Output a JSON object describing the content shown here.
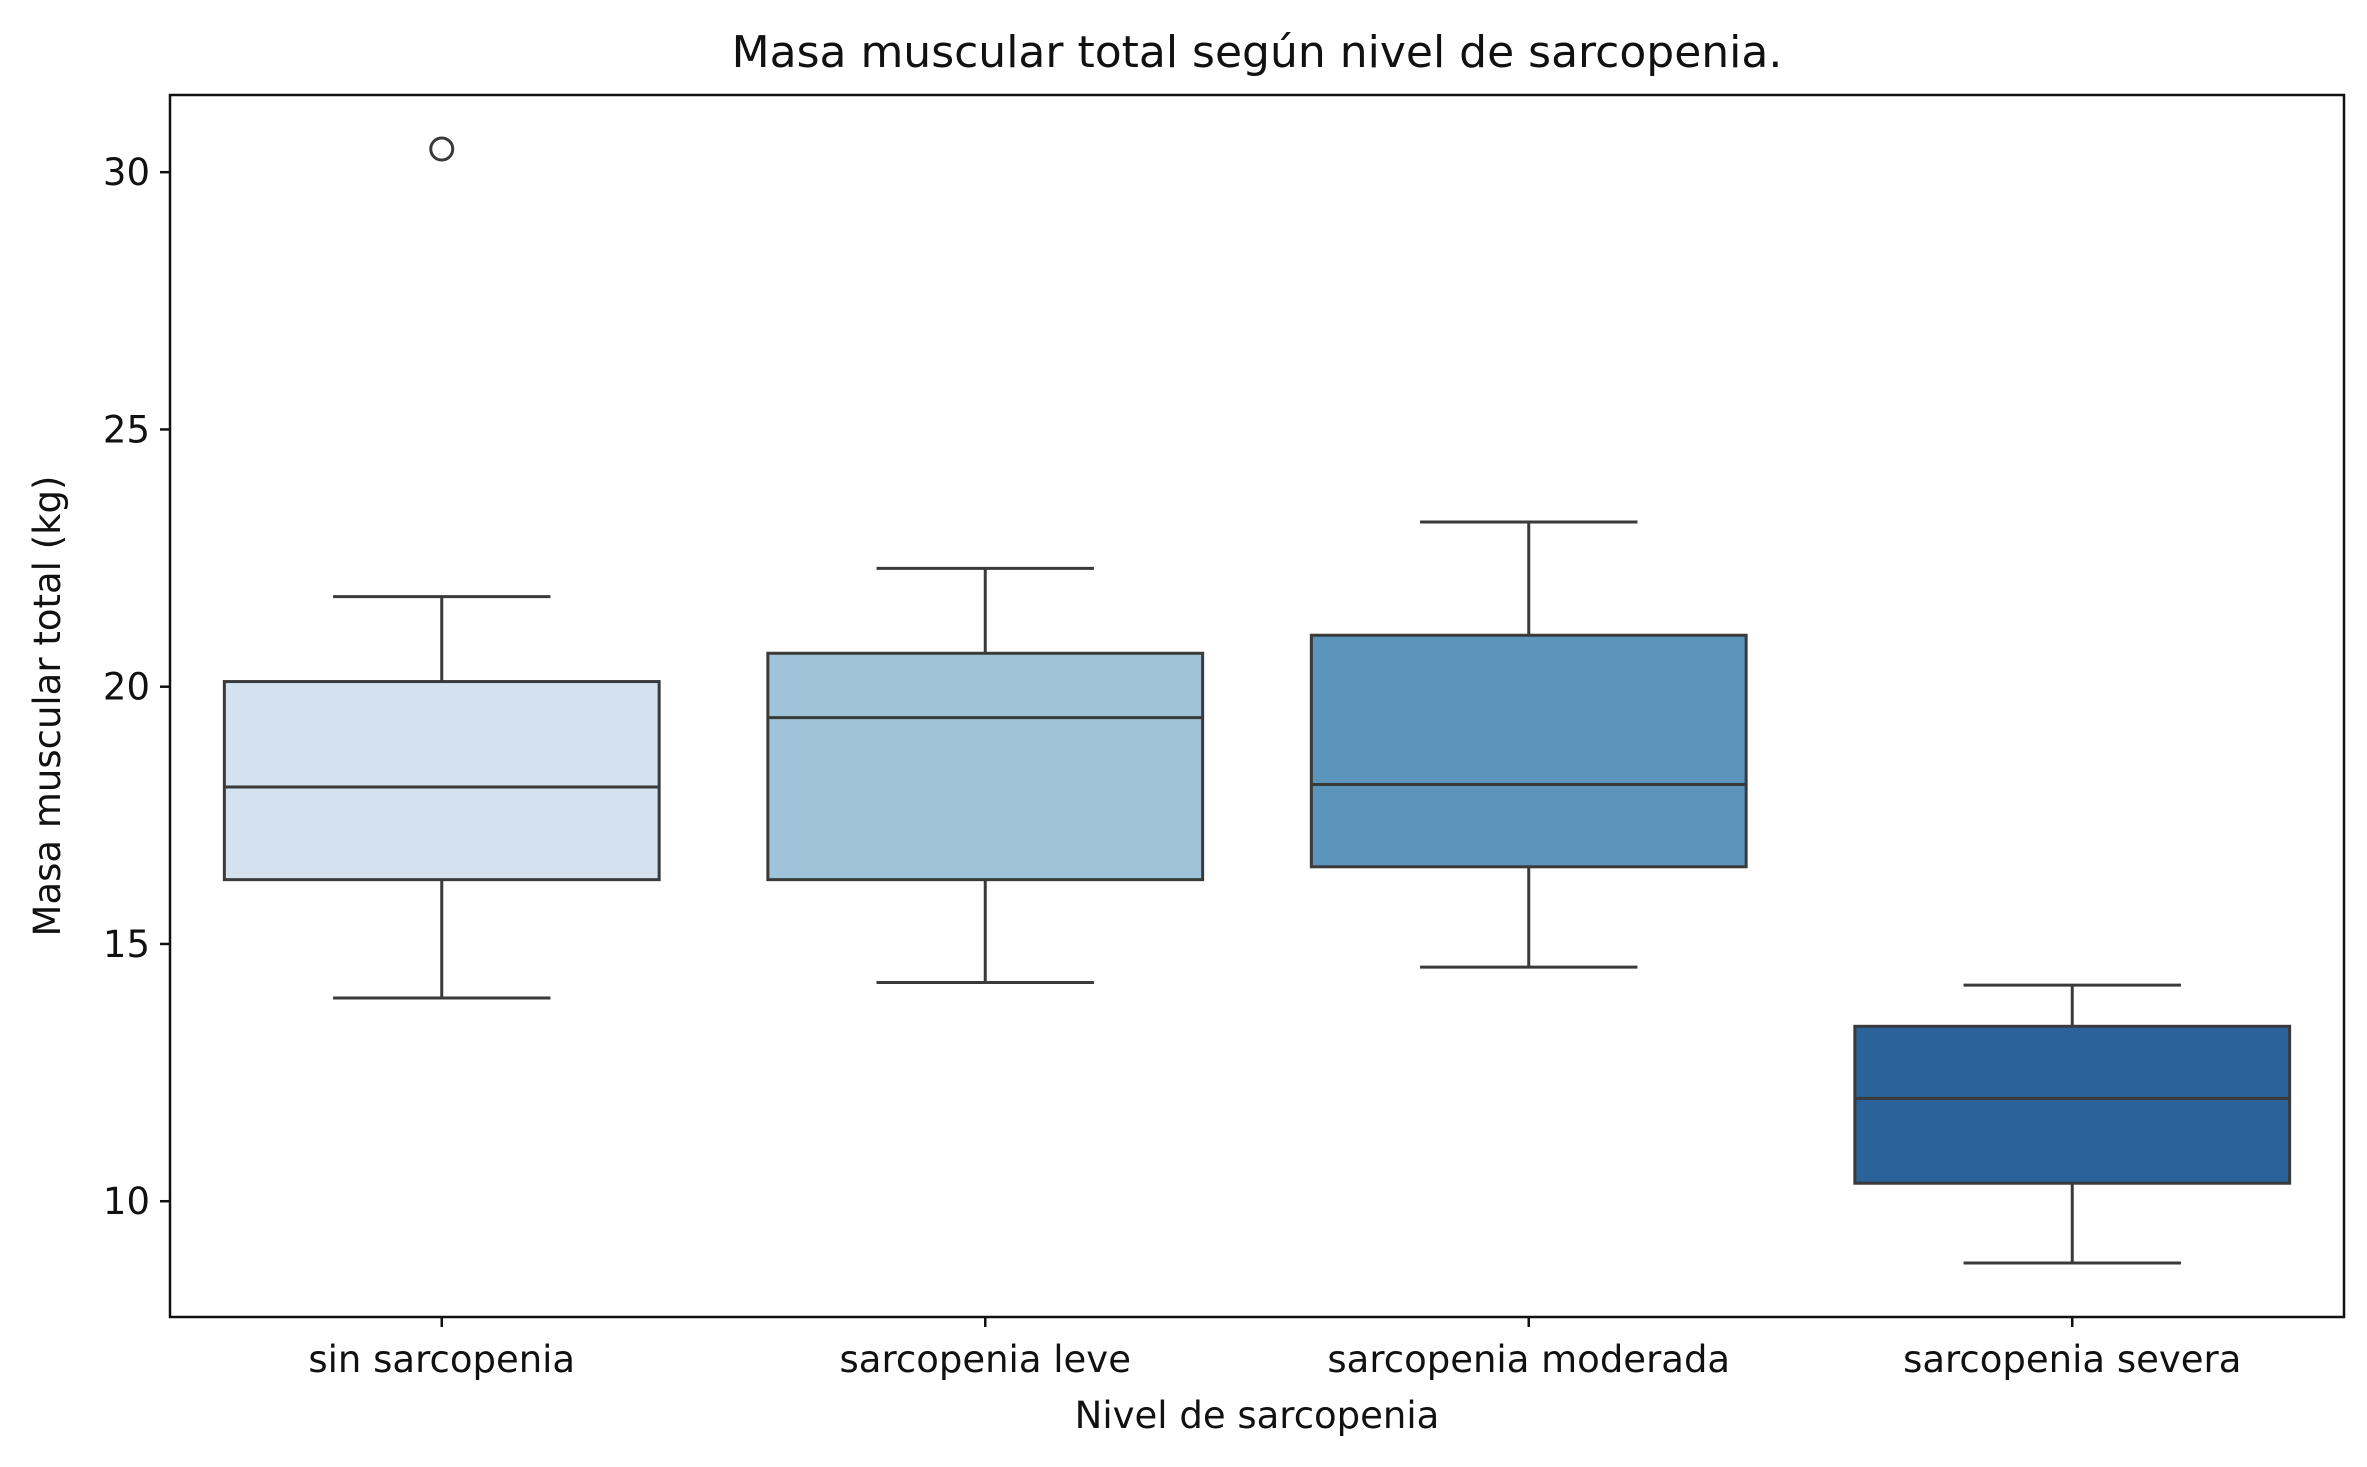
{
  "chart_data": {
    "type": "box",
    "title": "Masa muscular total según nivel de sarcopenia.",
    "xlabel": "Nivel de sarcopenia",
    "ylabel": "Masa muscular total (kg)",
    "ylim": [
      7.75,
      31.5
    ],
    "yticks": [
      10,
      15,
      20,
      25,
      30
    ],
    "ytick_labels": [
      "10",
      "15",
      "20",
      "25",
      "30"
    ],
    "grid": false,
    "categories": [
      "sin sarcopenia",
      "sarcopenia leve",
      "sarcopenia moderada",
      "sarcopenia severa"
    ],
    "boxes": [
      {
        "whisker_low": 13.95,
        "q1": 16.25,
        "median": 18.05,
        "q3": 20.1,
        "whisker_high": 21.75,
        "outliers": [
          30.45
        ],
        "color": "#d4e2f0"
      },
      {
        "whisker_low": 14.25,
        "q1": 16.25,
        "median": 19.4,
        "q3": 20.65,
        "whisker_high": 22.3,
        "outliers": [],
        "color": "#9fc3d8"
      },
      {
        "whisker_low": 14.55,
        "q1": 16.5,
        "median": 18.1,
        "q3": 21.0,
        "whisker_high": 23.2,
        "outliers": [],
        "color": "#5b95bb"
      },
      {
        "whisker_low": 8.8,
        "q1": 10.35,
        "median": 12.0,
        "q3": 13.4,
        "whisker_high": 14.2,
        "outliers": [],
        "color": "#2a639b"
      }
    ]
  }
}
